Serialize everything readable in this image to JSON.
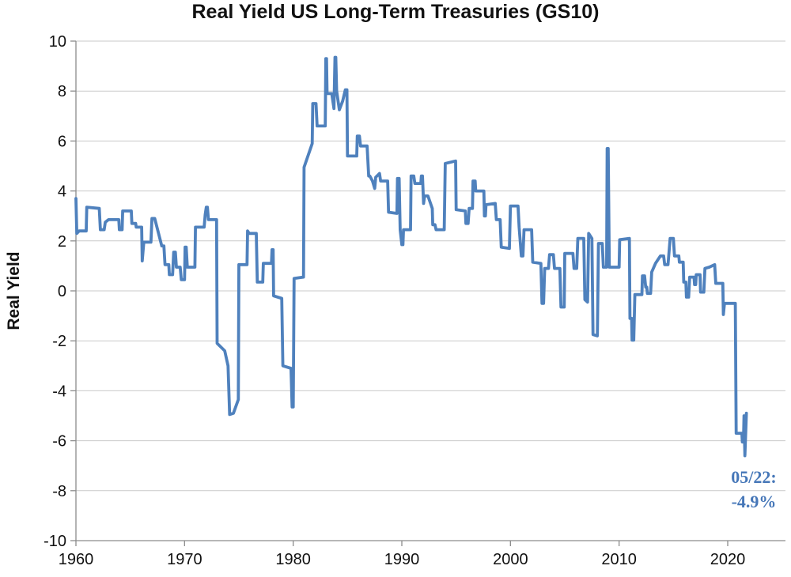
{
  "chart_data": {
    "type": "line",
    "title": "Real Yield US Long-Term Treasuries (GS10)",
    "ylabel": "Real Yield",
    "xlabel": "",
    "legend": "none",
    "grid": "horizontal",
    "line_color": "#4F81BD",
    "grid_color": "#C9C9C9",
    "axis_color": "#8C8C8C",
    "ylim": [
      -10,
      10
    ],
    "xlim": [
      1960,
      2025.3
    ],
    "y_ticks": [
      10,
      8,
      6,
      4,
      2,
      0,
      -2,
      -4,
      -6,
      -8,
      -10
    ],
    "x_ticks": [
      1960,
      1970,
      1980,
      1990,
      2000,
      2010,
      2020
    ],
    "annotation": {
      "line1": "05/22:",
      "line2": "-4.9%",
      "color": "#4677B8"
    },
    "points": [
      [
        1960.0,
        3.7
      ],
      [
        1960.08,
        2.3
      ],
      [
        1960.3,
        2.4
      ],
      [
        1960.95,
        2.4
      ],
      [
        1961.0,
        3.35
      ],
      [
        1962.15,
        3.3
      ],
      [
        1962.25,
        2.45
      ],
      [
        1962.6,
        2.45
      ],
      [
        1962.7,
        2.75
      ],
      [
        1963.0,
        2.85
      ],
      [
        1963.95,
        2.85
      ],
      [
        1964.0,
        2.45
      ],
      [
        1964.25,
        2.45
      ],
      [
        1964.3,
        3.2
      ],
      [
        1965.1,
        3.2
      ],
      [
        1965.15,
        2.7
      ],
      [
        1965.5,
        2.7
      ],
      [
        1965.55,
        2.55
      ],
      [
        1966.05,
        2.55
      ],
      [
        1966.1,
        1.2
      ],
      [
        1966.25,
        1.95
      ],
      [
        1966.9,
        1.95
      ],
      [
        1967.0,
        2.9
      ],
      [
        1967.25,
        2.9
      ],
      [
        1967.9,
        1.8
      ],
      [
        1968.1,
        1.8
      ],
      [
        1968.2,
        1.05
      ],
      [
        1968.55,
        1.05
      ],
      [
        1968.6,
        0.65
      ],
      [
        1968.9,
        0.65
      ],
      [
        1969.0,
        1.55
      ],
      [
        1969.15,
        1.55
      ],
      [
        1969.25,
        0.95
      ],
      [
        1969.6,
        0.95
      ],
      [
        1969.7,
        0.45
      ],
      [
        1970.0,
        0.45
      ],
      [
        1970.05,
        1.75
      ],
      [
        1970.15,
        1.75
      ],
      [
        1970.25,
        0.95
      ],
      [
        1970.95,
        0.95
      ],
      [
        1971.0,
        2.55
      ],
      [
        1971.8,
        2.55
      ],
      [
        1971.9,
        3.05
      ],
      [
        1972.0,
        3.35
      ],
      [
        1972.1,
        3.35
      ],
      [
        1972.2,
        2.85
      ],
      [
        1972.95,
        2.85
      ],
      [
        1973.0,
        -2.1
      ],
      [
        1973.7,
        -2.4
      ],
      [
        1974.0,
        -3.0
      ],
      [
        1974.15,
        -4.95
      ],
      [
        1974.5,
        -4.9
      ],
      [
        1974.95,
        -4.35
      ],
      [
        1975.0,
        1.05
      ],
      [
        1975.75,
        1.05
      ],
      [
        1975.8,
        2.4
      ],
      [
        1975.95,
        2.3
      ],
      [
        1976.0,
        2.3
      ],
      [
        1976.6,
        2.3
      ],
      [
        1976.7,
        0.35
      ],
      [
        1977.2,
        0.35
      ],
      [
        1977.25,
        1.1
      ],
      [
        1978.0,
        1.1
      ],
      [
        1978.05,
        1.65
      ],
      [
        1978.15,
        1.65
      ],
      [
        1978.2,
        -0.2
      ],
      [
        1978.95,
        -0.3
      ],
      [
        1979.05,
        -3.0
      ],
      [
        1979.8,
        -3.1
      ],
      [
        1979.9,
        -4.65
      ],
      [
        1980.0,
        -4.65
      ],
      [
        1980.08,
        0.5
      ],
      [
        1980.95,
        0.55
      ],
      [
        1981.0,
        4.95
      ],
      [
        1981.75,
        5.9
      ],
      [
        1981.8,
        7.5
      ],
      [
        1982.1,
        7.5
      ],
      [
        1982.2,
        6.6
      ],
      [
        1982.95,
        6.6
      ],
      [
        1983.0,
        9.3
      ],
      [
        1983.07,
        9.3
      ],
      [
        1983.12,
        7.9
      ],
      [
        1983.55,
        7.9
      ],
      [
        1983.75,
        7.3
      ],
      [
        1983.85,
        9.35
      ],
      [
        1983.92,
        9.35
      ],
      [
        1984.0,
        8.0
      ],
      [
        1984.25,
        7.25
      ],
      [
        1984.55,
        7.6
      ],
      [
        1984.8,
        8.05
      ],
      [
        1984.95,
        8.05
      ],
      [
        1985.0,
        5.4
      ],
      [
        1985.85,
        5.4
      ],
      [
        1985.9,
        6.2
      ],
      [
        1986.1,
        6.2
      ],
      [
        1986.2,
        5.8
      ],
      [
        1986.8,
        5.8
      ],
      [
        1986.95,
        4.6
      ],
      [
        1987.05,
        4.6
      ],
      [
        1987.3,
        4.4
      ],
      [
        1987.5,
        4.1
      ],
      [
        1987.6,
        4.55
      ],
      [
        1987.95,
        4.7
      ],
      [
        1988.05,
        4.4
      ],
      [
        1988.7,
        4.4
      ],
      [
        1988.78,
        3.15
      ],
      [
        1989.55,
        3.1
      ],
      [
        1989.6,
        4.5
      ],
      [
        1989.75,
        4.5
      ],
      [
        1989.85,
        2.45
      ],
      [
        1990.0,
        1.85
      ],
      [
        1990.1,
        1.85
      ],
      [
        1990.15,
        2.45
      ],
      [
        1990.8,
        2.45
      ],
      [
        1990.85,
        4.6
      ],
      [
        1991.1,
        4.6
      ],
      [
        1991.2,
        4.3
      ],
      [
        1991.75,
        4.3
      ],
      [
        1991.8,
        4.6
      ],
      [
        1991.9,
        4.6
      ],
      [
        1992.0,
        3.5
      ],
      [
        1992.1,
        3.8
      ],
      [
        1992.4,
        3.8
      ],
      [
        1992.8,
        3.3
      ],
      [
        1992.85,
        2.65
      ],
      [
        1993.05,
        2.65
      ],
      [
        1993.15,
        2.45
      ],
      [
        1993.9,
        2.45
      ],
      [
        1994.0,
        5.1
      ],
      [
        1994.95,
        5.2
      ],
      [
        1995.0,
        3.25
      ],
      [
        1995.85,
        3.2
      ],
      [
        1995.9,
        2.7
      ],
      [
        1996.1,
        2.7
      ],
      [
        1996.2,
        3.3
      ],
      [
        1996.5,
        3.3
      ],
      [
        1996.55,
        4.4
      ],
      [
        1996.75,
        4.4
      ],
      [
        1996.8,
        4.0
      ],
      [
        1997.55,
        4.0
      ],
      [
        1997.6,
        3.0
      ],
      [
        1997.7,
        3.0
      ],
      [
        1997.75,
        3.45
      ],
      [
        1998.6,
        3.5
      ],
      [
        1998.7,
        2.85
      ],
      [
        1999.05,
        2.85
      ],
      [
        1999.15,
        1.75
      ],
      [
        1999.9,
        1.7
      ],
      [
        2000.0,
        3.4
      ],
      [
        2000.7,
        3.4
      ],
      [
        2000.8,
        2.55
      ],
      [
        2001.0,
        1.4
      ],
      [
        2001.15,
        1.4
      ],
      [
        2001.25,
        2.45
      ],
      [
        2001.95,
        2.45
      ],
      [
        2002.05,
        1.15
      ],
      [
        2002.8,
        1.1
      ],
      [
        2002.9,
        -0.5
      ],
      [
        2003.05,
        -0.5
      ],
      [
        2003.15,
        0.9
      ],
      [
        2003.5,
        0.9
      ],
      [
        2003.6,
        1.45
      ],
      [
        2003.95,
        1.45
      ],
      [
        2004.05,
        0.9
      ],
      [
        2004.55,
        0.9
      ],
      [
        2004.65,
        -0.65
      ],
      [
        2004.95,
        -0.65
      ],
      [
        2005.0,
        1.5
      ],
      [
        2005.75,
        1.5
      ],
      [
        2005.85,
        0.9
      ],
      [
        2006.1,
        0.9
      ],
      [
        2006.2,
        2.1
      ],
      [
        2006.75,
        2.1
      ],
      [
        2006.85,
        -0.35
      ],
      [
        2007.1,
        -0.45
      ],
      [
        2007.2,
        2.3
      ],
      [
        2007.5,
        2.1
      ],
      [
        2007.6,
        -1.75
      ],
      [
        2008.0,
        -1.8
      ],
      [
        2008.1,
        1.9
      ],
      [
        2008.45,
        1.9
      ],
      [
        2008.55,
        0.95
      ],
      [
        2008.85,
        0.95
      ],
      [
        2008.9,
        5.7
      ],
      [
        2009.0,
        5.7
      ],
      [
        2009.1,
        0.95
      ],
      [
        2010.0,
        0.95
      ],
      [
        2010.05,
        2.05
      ],
      [
        2010.95,
        2.1
      ],
      [
        2011.0,
        -1.1
      ],
      [
        2011.15,
        -1.1
      ],
      [
        2011.2,
        -1.97
      ],
      [
        2011.35,
        -1.97
      ],
      [
        2011.45,
        -0.15
      ],
      [
        2012.1,
        -0.15
      ],
      [
        2012.15,
        0.6
      ],
      [
        2012.35,
        0.6
      ],
      [
        2012.45,
        0.15
      ],
      [
        2012.55,
        0.15
      ],
      [
        2012.6,
        -0.1
      ],
      [
        2012.9,
        -0.1
      ],
      [
        2013.0,
        0.75
      ],
      [
        2013.35,
        1.1
      ],
      [
        2013.8,
        1.4
      ],
      [
        2014.1,
        1.4
      ],
      [
        2014.2,
        1.05
      ],
      [
        2014.5,
        1.05
      ],
      [
        2014.6,
        1.55
      ],
      [
        2014.7,
        2.1
      ],
      [
        2015.0,
        2.1
      ],
      [
        2015.1,
        1.4
      ],
      [
        2015.5,
        1.4
      ],
      [
        2015.55,
        1.15
      ],
      [
        2015.9,
        1.15
      ],
      [
        2015.95,
        0.35
      ],
      [
        2016.15,
        0.35
      ],
      [
        2016.2,
        -0.25
      ],
      [
        2016.4,
        -0.25
      ],
      [
        2016.5,
        0.55
      ],
      [
        2016.9,
        0.55
      ],
      [
        2016.95,
        0.25
      ],
      [
        2017.05,
        0.25
      ],
      [
        2017.1,
        0.65
      ],
      [
        2017.45,
        0.65
      ],
      [
        2017.5,
        -0.05
      ],
      [
        2017.8,
        -0.05
      ],
      [
        2017.9,
        0.9
      ],
      [
        2018.3,
        0.95
      ],
      [
        2018.8,
        1.05
      ],
      [
        2018.9,
        0.3
      ],
      [
        2019.55,
        0.3
      ],
      [
        2019.6,
        -0.95
      ],
      [
        2019.7,
        -0.5
      ],
      [
        2020.7,
        -0.5
      ],
      [
        2020.78,
        -5.7
      ],
      [
        2021.3,
        -5.7
      ],
      [
        2021.35,
        -6.05
      ],
      [
        2021.45,
        -6.05
      ],
      [
        2021.5,
        -5.0
      ],
      [
        2021.58,
        -6.6
      ],
      [
        2021.72,
        -4.9
      ]
    ]
  }
}
